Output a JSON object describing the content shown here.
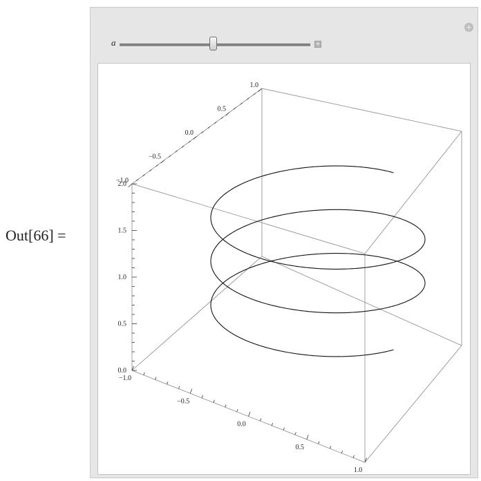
{
  "output_label": "Out[66] =",
  "manipulate": {
    "variable_label": "a",
    "slider_value_fraction": 0.49,
    "slider_plus_icon": "plus-box-icon",
    "panel_plus_icon": "plus-circle-icon"
  },
  "plot": {
    "tick_labels": {
      "back_axis": [
        "1.0",
        "0.5",
        "0.0",
        "−0.5",
        "−1.0"
      ],
      "vertical_axis": [
        "2.0",
        "1.5",
        "1.0",
        "0.5",
        "0.0"
      ],
      "front_axis": [
        "−1.0",
        "−0.5",
        "0.0",
        "0.5",
        "1.0"
      ]
    },
    "curve": {
      "type": "helix",
      "turns": 2.75,
      "z_range": [
        0,
        2
      ]
    }
  }
}
